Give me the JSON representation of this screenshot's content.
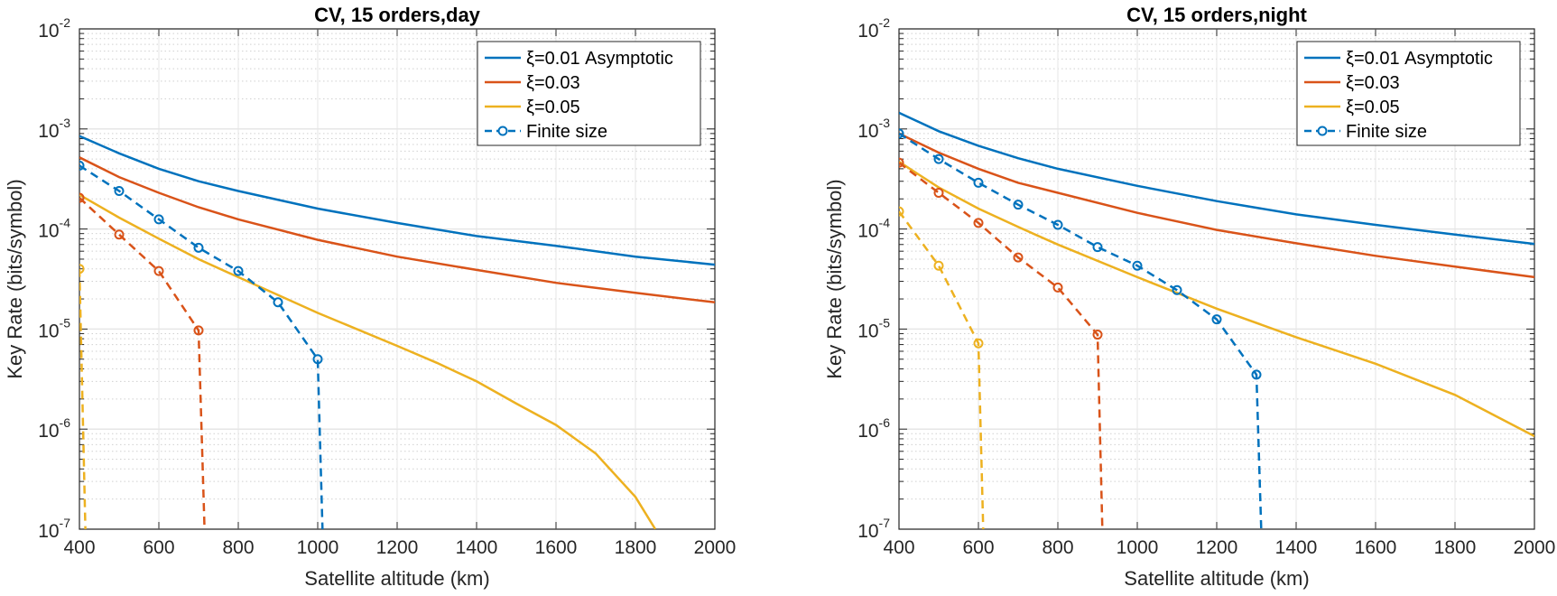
{
  "colors": {
    "xi001": "#0072BD",
    "xi003": "#D95319",
    "xi005": "#EDB120",
    "grid": "#e6e6e6"
  },
  "legend_labels": [
    "ξ=0.01 Asymptotic",
    "ξ=0.03",
    "ξ=0.05",
    "Finite size"
  ],
  "chart_data": [
    {
      "type": "line",
      "title": "CV, 15 orders,day",
      "xlabel": "Satellite altitude (km)",
      "ylabel": "Key Rate (bits/symbol)",
      "xlim": [
        400,
        2000
      ],
      "ylim": [
        1e-07,
        0.01
      ],
      "yscale": "log",
      "grid": true,
      "legend_position": "top-right",
      "xticks": [
        400,
        600,
        800,
        1000,
        1200,
        1400,
        1600,
        1800,
        2000
      ],
      "yticks": [
        "10^-7",
        "10^-6",
        "10^-5",
        "10^-4",
        "10^-3",
        "10^-2"
      ],
      "series": [
        {
          "name": "ξ=0.01 Asymptotic",
          "color": "#0072BD",
          "style": "solid",
          "x": [
            400,
            500,
            600,
            700,
            800,
            1000,
            1200,
            1400,
            1600,
            1800,
            2000
          ],
          "y": [
            0.00085,
            0.00057,
            0.0004,
            0.0003,
            0.00024,
            0.00016,
            0.000115,
            8.5e-05,
            6.8e-05,
            5.3e-05,
            4.4e-05
          ]
        },
        {
          "name": "ξ=0.03",
          "color": "#D95319",
          "style": "solid",
          "x": [
            400,
            500,
            600,
            700,
            800,
            1000,
            1200,
            1400,
            1600,
            1800,
            2000
          ],
          "y": [
            0.00052,
            0.00033,
            0.00023,
            0.000165,
            0.000125,
            7.8e-05,
            5.3e-05,
            3.9e-05,
            2.9e-05,
            2.3e-05,
            1.85e-05
          ]
        },
        {
          "name": "ξ=0.05",
          "color": "#EDB120",
          "style": "solid",
          "x": [
            400,
            500,
            600,
            700,
            800,
            1000,
            1200,
            1300,
            1400,
            1500,
            1600,
            1700,
            1800,
            1850
          ],
          "y": [
            0.00022,
            0.00013,
            8e-05,
            5e-05,
            3.3e-05,
            1.45e-05,
            6.8e-06,
            4.6e-06,
            3e-06,
            1.8e-06,
            1.1e-06,
            5.7e-07,
            2.1e-07,
            1e-07
          ]
        },
        {
          "name": "Finite size",
          "color": "#0072BD",
          "style": "dashed-marker",
          "x": [
            400,
            500,
            600,
            700,
            800,
            900,
            1000,
            1012
          ],
          "y": [
            0.00043,
            0.00024,
            0.000125,
            6.5e-05,
            3.8e-05,
            1.85e-05,
            5e-06,
            1e-07
          ]
        },
        {
          "color": "#D95319",
          "style": "dashed-marker",
          "x": [
            400,
            500,
            600,
            700,
            715
          ],
          "y": [
            0.000205,
            8.8e-05,
            3.8e-05,
            9.7e-06,
            1e-07
          ]
        },
        {
          "color": "#EDB120",
          "style": "dashed-marker",
          "x": [
            400,
            415
          ],
          "y": [
            4e-05,
            1e-07
          ]
        }
      ]
    },
    {
      "type": "line",
      "title": "CV, 15 orders,night",
      "xlabel": "Satellite altitude (km)",
      "ylabel": "Key Rate (bits/symbol)",
      "xlim": [
        400,
        2000
      ],
      "ylim": [
        1e-07,
        0.01
      ],
      "yscale": "log",
      "grid": true,
      "legend_position": "top-right",
      "xticks": [
        400,
        600,
        800,
        1000,
        1200,
        1400,
        1600,
        1800,
        2000
      ],
      "yticks": [
        "10^-7",
        "10^-6",
        "10^-5",
        "10^-4",
        "10^-3",
        "10^-2"
      ],
      "series": [
        {
          "name": "ξ=0.01 Asymptotic",
          "color": "#0072BD",
          "style": "solid",
          "x": [
            400,
            500,
            600,
            700,
            800,
            1000,
            1200,
            1400,
            1600,
            1800,
            2000
          ],
          "y": [
            0.00145,
            0.00095,
            0.00068,
            0.00051,
            0.0004,
            0.00027,
            0.00019,
            0.00014,
            0.00011,
            8.8e-05,
            7.1e-05
          ]
        },
        {
          "name": "ξ=0.03",
          "color": "#D95319",
          "style": "solid",
          "x": [
            400,
            500,
            600,
            700,
            800,
            1000,
            1200,
            1400,
            1600,
            1800,
            2000
          ],
          "y": [
            0.0009,
            0.00058,
            0.0004,
            0.00029,
            0.00023,
            0.000145,
            9.8e-05,
            7.2e-05,
            5.4e-05,
            4.2e-05,
            3.3e-05
          ]
        },
        {
          "name": "ξ=0.05",
          "color": "#EDB120",
          "style": "solid",
          "x": [
            400,
            500,
            600,
            700,
            800,
            1000,
            1200,
            1400,
            1600,
            1800,
            2000
          ],
          "y": [
            0.00047,
            0.00026,
            0.00016,
            0.000105,
            7e-05,
            3.3e-05,
            1.6e-05,
            8.3e-06,
            4.5e-06,
            2.2e-06,
            8.5e-07
          ]
        },
        {
          "name": "Finite size",
          "color": "#0072BD",
          "style": "dashed-marker",
          "x": [
            400,
            500,
            600,
            700,
            800,
            900,
            1000,
            1100,
            1200,
            1300,
            1312
          ],
          "y": [
            0.0009,
            0.0005,
            0.00029,
            0.000175,
            0.00011,
            6.6e-05,
            4.3e-05,
            2.45e-05,
            1.25e-05,
            3.5e-06,
            1e-07
          ]
        },
        {
          "color": "#D95319",
          "style": "dashed-marker",
          "x": [
            400,
            500,
            600,
            700,
            800,
            900,
            912
          ],
          "y": [
            0.00046,
            0.00023,
            0.000115,
            5.2e-05,
            2.6e-05,
            8.8e-06,
            1e-07
          ]
        },
        {
          "color": "#EDB120",
          "style": "dashed-marker",
          "x": [
            400,
            500,
            600,
            612
          ],
          "y": [
            0.00015,
            4.3e-05,
            7.2e-06,
            1e-07
          ]
        }
      ]
    }
  ]
}
